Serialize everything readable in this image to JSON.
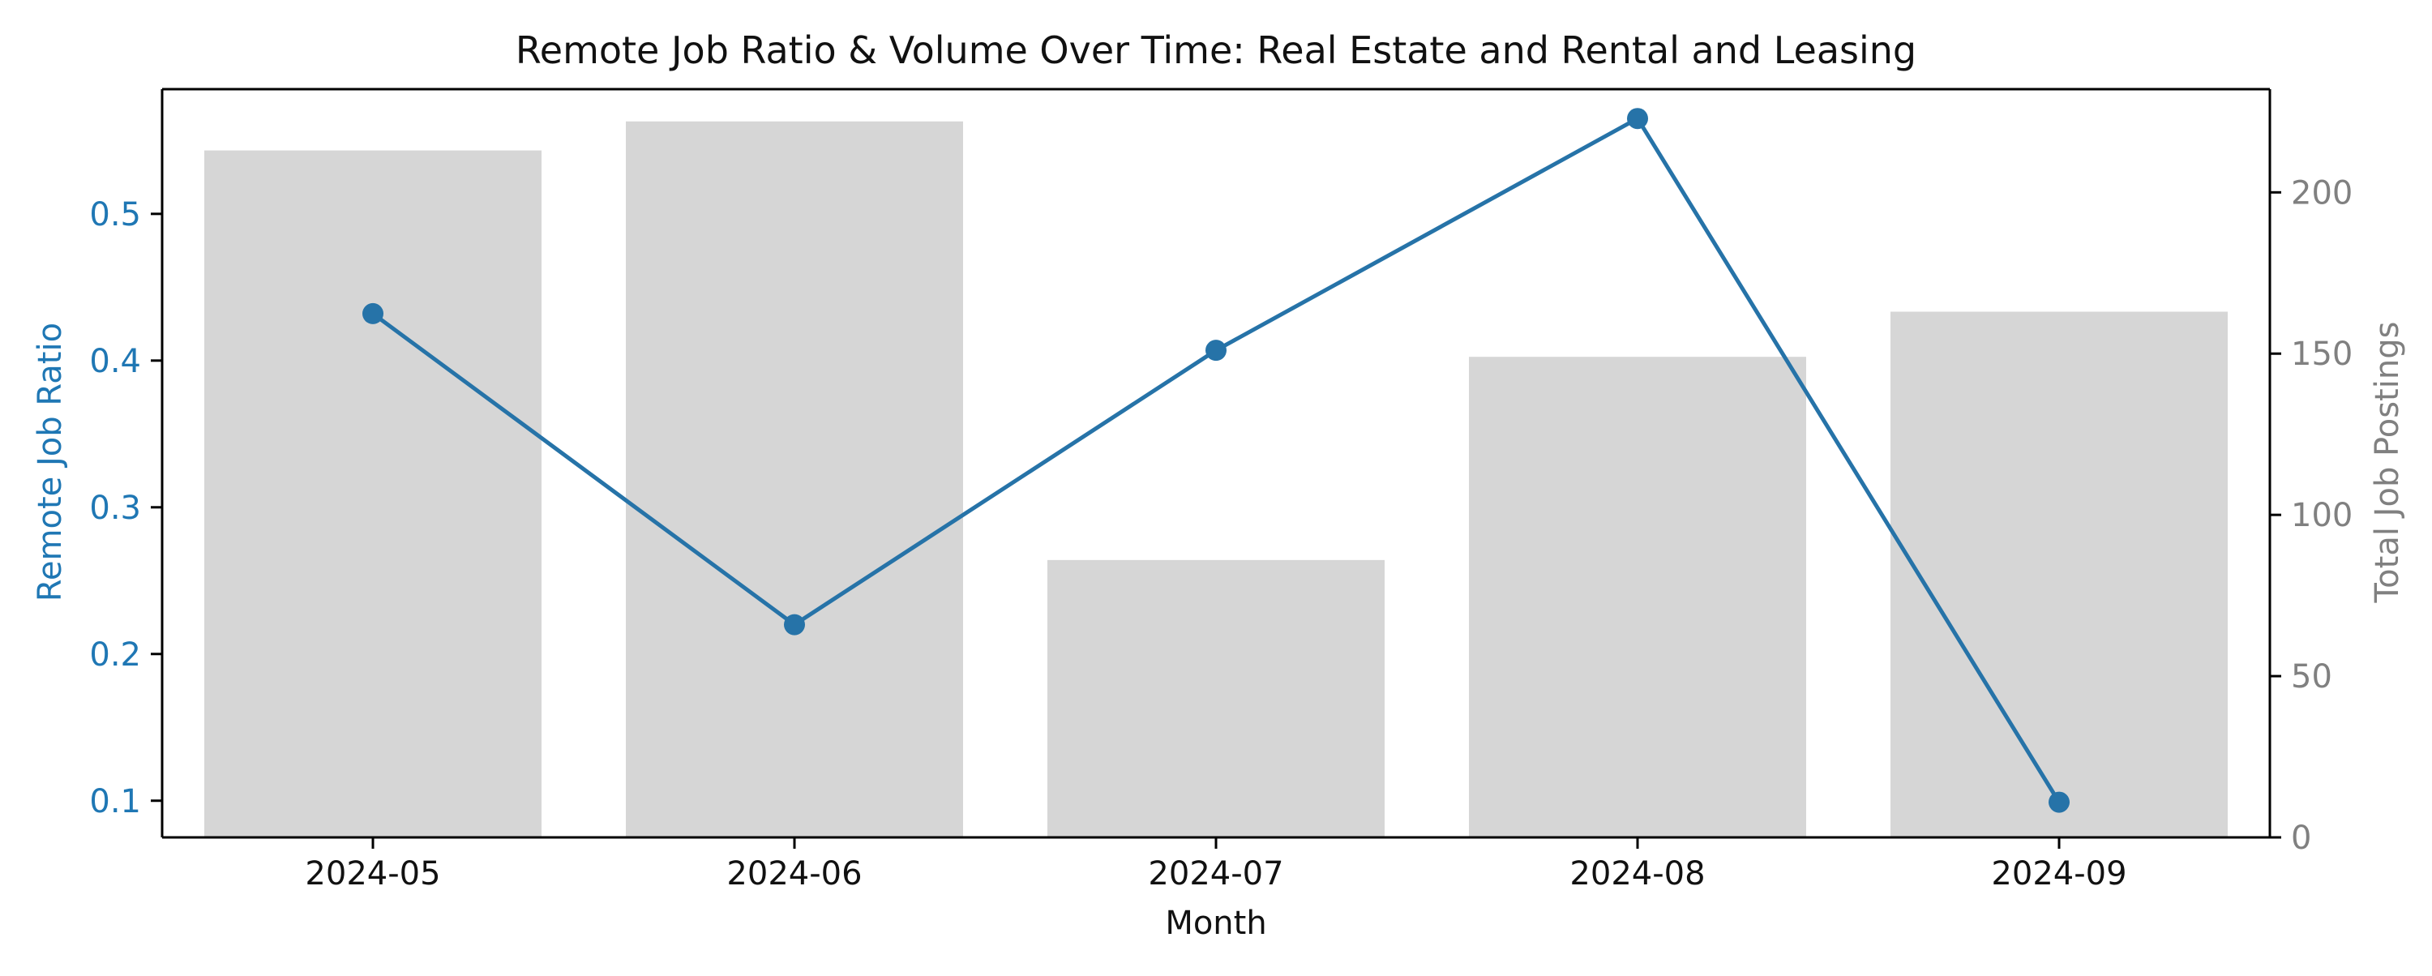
{
  "colors": {
    "line": "#2673a8",
    "left_axis": "#1f77b4",
    "bar": "#d6d6d6",
    "right_axis": "#808080",
    "text": "#111111"
  },
  "chart_data": {
    "type": "bar+line",
    "title": "Remote Job Ratio & Volume Over Time: Real Estate and Rental and Leasing",
    "xlabel": "Month",
    "ylabel_left": "Remote Job Ratio",
    "ylabel_right": "Total Job Postings",
    "categories": [
      "2024-05",
      "2024-06",
      "2024-07",
      "2024-08",
      "2024-09"
    ],
    "series": [
      {
        "type": "bar",
        "axis": "right",
        "values": [
          213,
          222,
          86,
          149,
          163
        ]
      },
      {
        "type": "line",
        "axis": "left",
        "marker": "circle",
        "values": [
          0.432,
          0.22,
          0.407,
          0.565,
          0.099
        ]
      }
    ],
    "ylim_left": [
      0.075,
      0.585
    ],
    "ylim_right": [
      0,
      232
    ],
    "yticks_left": [
      "0.1",
      "0.2",
      "0.3",
      "0.4",
      "0.5"
    ],
    "yticks_right": [
      "0",
      "50",
      "100",
      "150",
      "200"
    ],
    "grid": false,
    "legend": "none"
  }
}
